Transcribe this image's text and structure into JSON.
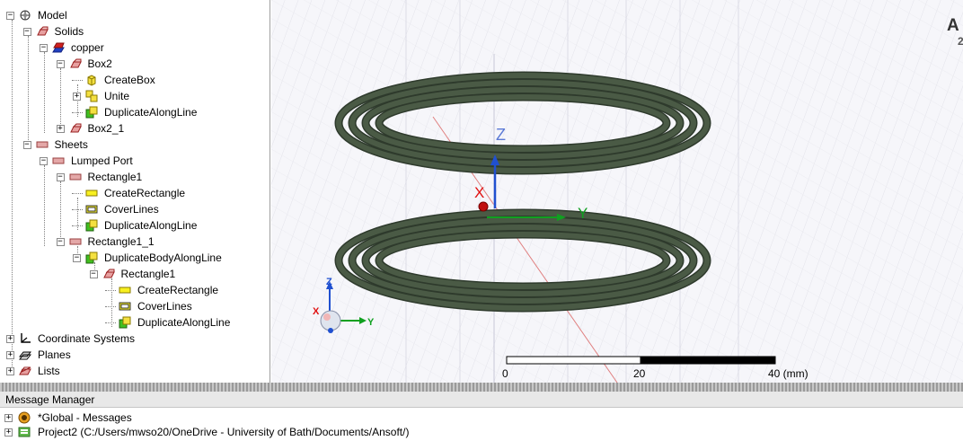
{
  "tree": {
    "items": [
      {
        "id": "model",
        "label": "Model",
        "icon": "model-icon",
        "level": 0,
        "expander": "minus"
      },
      {
        "id": "solids",
        "label": "Solids",
        "icon": "solid-box-icon",
        "level": 1,
        "expander": "minus"
      },
      {
        "id": "copper",
        "label": "copper",
        "icon": "material-copper-icon",
        "level": 2,
        "expander": "minus"
      },
      {
        "id": "box2",
        "label": "Box2",
        "icon": "solid-box-icon",
        "level": 3,
        "expander": "minus"
      },
      {
        "id": "createbox",
        "label": "CreateBox",
        "icon": "create-box-icon",
        "level": 4,
        "expander": "none"
      },
      {
        "id": "unite",
        "label": "Unite",
        "icon": "unite-icon",
        "level": 4,
        "expander": "plus"
      },
      {
        "id": "dupline1",
        "label": "DuplicateAlongLine",
        "icon": "duplicate-icon",
        "level": 4,
        "expander": "none"
      },
      {
        "id": "box2_1",
        "label": "Box2_1",
        "icon": "solid-box-icon",
        "level": 3,
        "expander": "plus"
      },
      {
        "id": "sheets",
        "label": "Sheets",
        "icon": "sheet-icon",
        "level": 1,
        "expander": "minus"
      },
      {
        "id": "lumped",
        "label": "Lumped Port",
        "icon": "sheet-icon",
        "level": 2,
        "expander": "minus"
      },
      {
        "id": "rect1",
        "label": "Rectangle1",
        "icon": "sheet-icon",
        "level": 3,
        "expander": "minus"
      },
      {
        "id": "createrect1",
        "label": "CreateRectangle",
        "icon": "create-rectangle-icon",
        "level": 4,
        "expander": "none"
      },
      {
        "id": "cover1",
        "label": "CoverLines",
        "icon": "cover-lines-icon",
        "level": 4,
        "expander": "none"
      },
      {
        "id": "dupline2",
        "label": "DuplicateAlongLine",
        "icon": "duplicate-icon",
        "level": 4,
        "expander": "none"
      },
      {
        "id": "rect1_1",
        "label": "Rectangle1_1",
        "icon": "sheet-icon",
        "level": 3,
        "expander": "minus"
      },
      {
        "id": "dupbody",
        "label": "DuplicateBodyAlongLine",
        "icon": "duplicate-icon",
        "level": 4,
        "expander": "minus"
      },
      {
        "id": "rect1b",
        "label": "Rectangle1",
        "icon": "solid-box-icon",
        "level": 5,
        "expander": "minus"
      },
      {
        "id": "createrect2",
        "label": "CreateRectangle",
        "icon": "create-rectangle-icon",
        "level": 6,
        "expander": "none"
      },
      {
        "id": "cover2",
        "label": "CoverLines",
        "icon": "cover-lines-icon",
        "level": 6,
        "expander": "none"
      },
      {
        "id": "dupline3",
        "label": "DuplicateAlongLine",
        "icon": "duplicate-icon",
        "level": 6,
        "expander": "none"
      },
      {
        "id": "coords",
        "label": "Coordinate Systems",
        "icon": "coordinate-systems-icon",
        "level": 0,
        "expander": "plus"
      },
      {
        "id": "planes",
        "label": "Planes",
        "icon": "planes-icon",
        "level": 0,
        "expander": "plus"
      },
      {
        "id": "lists",
        "label": "Lists",
        "icon": "lists-icon",
        "level": 0,
        "expander": "plus"
      }
    ]
  },
  "viewport": {
    "axes": {
      "z": "Z",
      "x": "X",
      "y": "Y"
    },
    "triad": {
      "z": "Z",
      "x": "X",
      "y": "Y"
    },
    "corner_text": "A",
    "corner_sub": "2",
    "scale": {
      "ticks": [
        "0",
        "20",
        "40 (mm)"
      ]
    },
    "coil_color": "#4a5a45",
    "coil_edge": "#2e3a2c",
    "axis_colors": {
      "x": "#e01010",
      "y": "#10a020",
      "z": "#2050d0"
    }
  },
  "message_manager": {
    "title": "Message Manager",
    "rows": [
      {
        "label": "*Global - Messages",
        "icon": "global-messages-icon",
        "expander": "plus"
      },
      {
        "label": "Project2 (C:/Users/mwso20/OneDrive - University of Bath/Documents/Ansoft/)",
        "icon": "project-icon",
        "expander": "plus"
      }
    ]
  }
}
